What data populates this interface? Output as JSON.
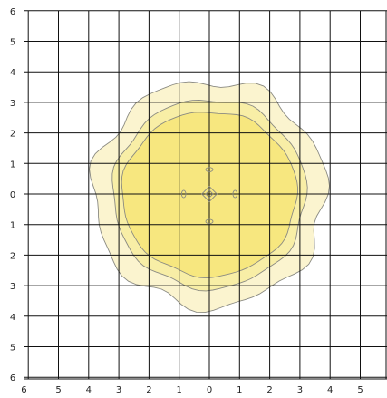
{
  "chart_data": {
    "type": "contour",
    "title": "",
    "xlabel": "",
    "ylabel": "",
    "x_ticks": [
      {
        "value": -6,
        "label": "6"
      },
      {
        "value": -5,
        "label": "5"
      },
      {
        "value": -4,
        "label": "4"
      },
      {
        "value": -3,
        "label": "3"
      },
      {
        "value": -2,
        "label": "2"
      },
      {
        "value": -1,
        "label": "1"
      },
      {
        "value": 0,
        "label": "0"
      },
      {
        "value": 1,
        "label": "1"
      },
      {
        "value": 2,
        "label": "2"
      },
      {
        "value": 3,
        "label": "3"
      },
      {
        "value": 4,
        "label": "4"
      },
      {
        "value": 5,
        "label": "5"
      }
    ],
    "y_ticks": [
      {
        "value": 6,
        "label": "6"
      },
      {
        "value": 5,
        "label": "5"
      },
      {
        "value": 4,
        "label": "4"
      },
      {
        "value": 3,
        "label": "3"
      },
      {
        "value": 2,
        "label": "2"
      },
      {
        "value": 1,
        "label": "1"
      },
      {
        "value": 0,
        "label": "0"
      },
      {
        "value": -1,
        "label": "1"
      },
      {
        "value": -2,
        "label": "2"
      },
      {
        "value": -3,
        "label": "3"
      },
      {
        "value": -4,
        "label": "4"
      },
      {
        "value": -5,
        "label": "5"
      },
      {
        "value": -6,
        "label": "6"
      }
    ],
    "xlim": [
      -6,
      5.5
    ],
    "ylim": [
      -6,
      6
    ],
    "grid": true,
    "regions": [
      {
        "fill": "#fbf4cf",
        "stroke": "#8a8a82",
        "rx": 3.85,
        "ry": 3.7,
        "wobble": 0.04
      },
      {
        "fill": "#f8eea6",
        "stroke": "#8a8a82",
        "rx": 3.2,
        "ry": 3.1,
        "wobble": 0.02
      },
      {
        "fill": "#f7e77f",
        "stroke": "#8a8a82",
        "rx": 2.9,
        "ry": 2.7,
        "wobble": 0.015
      }
    ],
    "center_marks": [
      {
        "shape": "diamond",
        "x": 0,
        "y": 0,
        "r": 0.25
      },
      {
        "shape": "diamond",
        "x": 0,
        "y": 0,
        "r": 0.12
      },
      {
        "shape": "ellipse",
        "x": 0,
        "y": 0.8,
        "rx": 0.12,
        "ry": 0.07
      },
      {
        "shape": "ellipse",
        "x": 0,
        "y": -0.9,
        "rx": 0.12,
        "ry": 0.07
      },
      {
        "shape": "ellipse",
        "x": -0.85,
        "y": 0,
        "rx": 0.07,
        "ry": 0.12
      },
      {
        "shape": "ellipse",
        "x": 0.85,
        "y": 0,
        "rx": 0.07,
        "ry": 0.12
      }
    ],
    "colors": {
      "grid": "#111111",
      "axis": "#111111",
      "mark_stroke": "#8a8a82"
    }
  }
}
